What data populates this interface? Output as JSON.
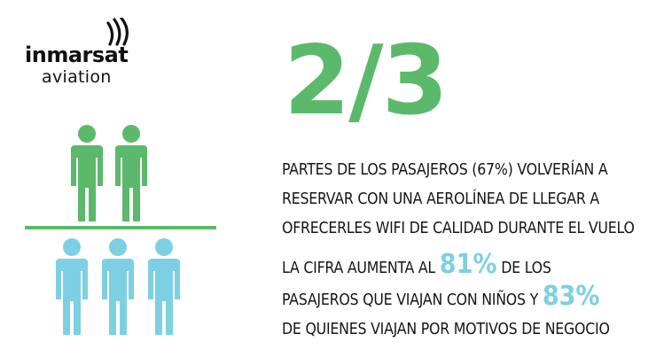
{
  "logo": {
    "brand": "inmarsat",
    "sub": "aviation"
  },
  "headline": "2/3",
  "paragraph1": {
    "lines": [
      "PARTES DE LOS PASAJEROS (67%) VOLVERÍAN A",
      "RESERVAR CON UNA AEROLÍNEA DE LLEGAR A",
      "OFRECERLES WIFI DE CALIDAD DURANTE EL VUELO"
    ]
  },
  "paragraph2": {
    "line1_before": "LA CIFRA AUMENTA AL",
    "highlight1": "81%",
    "line1_after": "DE LOS",
    "line2_before": "PASAJEROS QUE VIAJAN CON NIÑOS Y",
    "highlight2": "83%",
    "line3": "DE QUIENES VIAJAN POR MOTIVOS DE NEGOCIO"
  },
  "colors": {
    "green": "#5cb96b",
    "blue": "#7dd0e3",
    "text": "#151515"
  },
  "icons": {
    "person_green_count": 2,
    "person_blue_count": 3
  }
}
